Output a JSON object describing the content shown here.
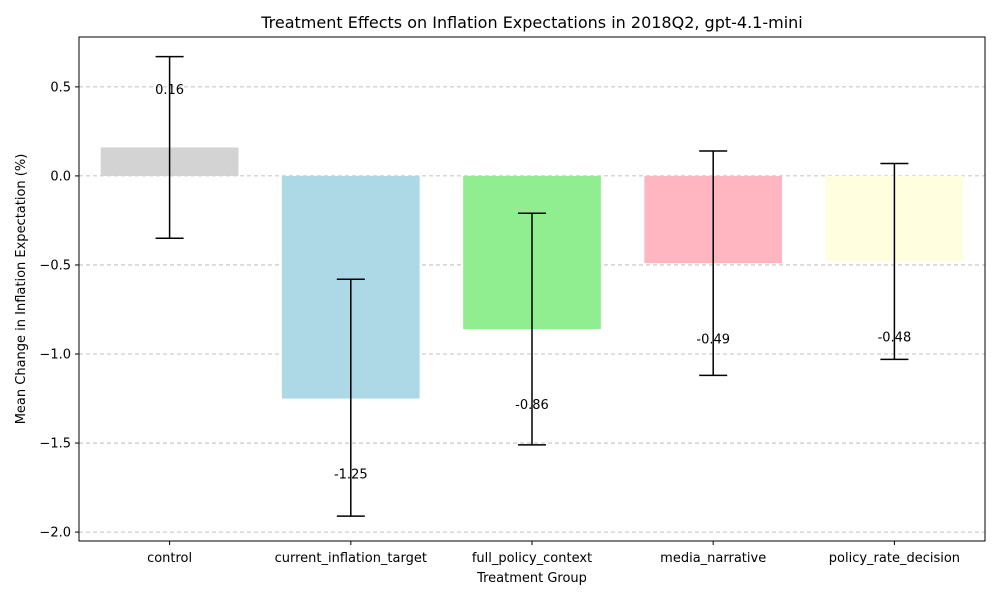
{
  "chart_data": {
    "type": "bar",
    "title": "Treatment Effects on Inflation Expectations in 2018Q2, gpt-4.1-mini",
    "xlabel": "Treatment Group",
    "ylabel": "Mean Change in Inflation Expectation (%)",
    "categories": [
      "control",
      "current_inflation_target",
      "full_policy_context",
      "media_narrative",
      "policy_rate_decision"
    ],
    "values": [
      0.16,
      -1.25,
      -0.86,
      -0.49,
      -0.48
    ],
    "value_labels": [
      "0.16",
      "-1.25",
      "-0.86",
      "-0.49",
      "-0.48"
    ],
    "error_low": [
      -0.35,
      -1.91,
      -1.51,
      -1.12,
      -1.03
    ],
    "error_high": [
      0.67,
      -0.58,
      -0.21,
      0.14,
      0.07
    ],
    "colors": [
      "#d3d3d3",
      "#add8e6",
      "#90ee90",
      "#ffb6c1",
      "#ffffe0"
    ],
    "ylim": [
      -2.05,
      0.78
    ],
    "yticks": [
      -2.0,
      -1.5,
      -1.0,
      -0.5,
      0.0,
      0.5
    ],
    "ytick_labels": [
      "−2.0",
      "−1.5",
      "−1.0",
      "−0.5",
      "0.0",
      "0.5"
    ],
    "grid": "y-dashed",
    "legend": "none"
  }
}
